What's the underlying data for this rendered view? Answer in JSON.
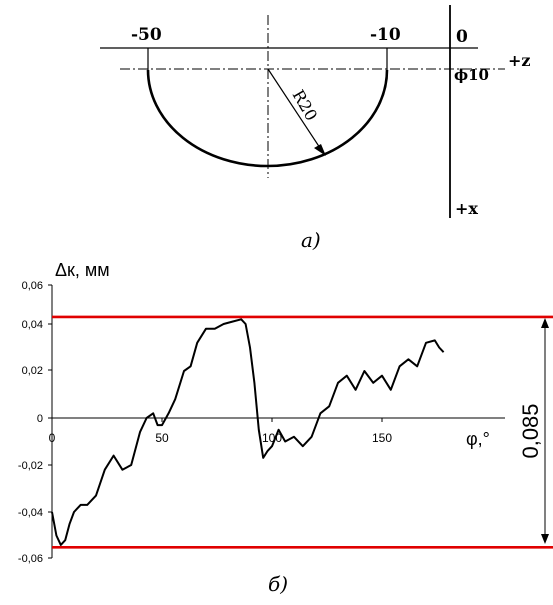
{
  "diagram_a": {
    "z_labels": [
      "-50",
      "-10",
      "0"
    ],
    "axis_z_label": "+z",
    "axis_x_label": "+x",
    "diameter_label": "ϕ10",
    "radius_label": "R20",
    "caption": "а)"
  },
  "chart_b": {
    "caption": "б)",
    "ylabel": "Δк, мм",
    "xlabel": "φ,°",
    "band_label": "0,085",
    "y_ticks": [
      "0,06",
      "0,04",
      "0,02",
      "0",
      "-0,02",
      "-0,04",
      "-0,06"
    ],
    "x_ticks": [
      "0",
      "50",
      "100",
      "150"
    ],
    "colors": {
      "line": "#000000",
      "limits": "#e00000"
    }
  },
  "chart_data": {
    "type": "line",
    "title": "",
    "xlabel": "φ,°",
    "ylabel": "Δк, мм",
    "xlim": [
      0,
      200
    ],
    "ylim": [
      -0.06,
      0.06
    ],
    "grid": false,
    "x_ticks": [
      0,
      50,
      100,
      150
    ],
    "y_ticks": [
      0.06,
      0.04,
      0.02,
      0,
      -0.02,
      -0.04,
      -0.06
    ],
    "limit_lines": [
      0.043,
      -0.055
    ],
    "band_value": "0,085",
    "series": [
      {
        "x": [
          0,
          2,
          4,
          6,
          8,
          10,
          13,
          16,
          20,
          24,
          28,
          32,
          36,
          40,
          43,
          46,
          48,
          50,
          53,
          56,
          60,
          63,
          66,
          70,
          74,
          78,
          82,
          86,
          88,
          90,
          92,
          94,
          96,
          98,
          100,
          103,
          106,
          110,
          114,
          118,
          122,
          126,
          130,
          134,
          138,
          142,
          146,
          150,
          154,
          158,
          162,
          166,
          170,
          174,
          176,
          178
        ],
        "y": [
          -0.04,
          -0.05,
          -0.054,
          -0.052,
          -0.045,
          -0.04,
          -0.037,
          -0.037,
          -0.033,
          -0.022,
          -0.016,
          -0.022,
          -0.02,
          -0.006,
          0,
          0.002,
          -0.003,
          -0.003,
          0.002,
          0.008,
          0.02,
          0.022,
          0.032,
          0.038,
          0.038,
          0.04,
          0.041,
          0.042,
          0.04,
          0.03,
          0.015,
          -0.005,
          -0.017,
          -0.014,
          -0.012,
          -0.005,
          -0.01,
          -0.008,
          -0.012,
          -0.008,
          0.002,
          0.005,
          0.015,
          0.018,
          0.012,
          0.02,
          0.015,
          0.018,
          0.012,
          0.022,
          0.025,
          0.022,
          0.032,
          0.033,
          0.03,
          0.028
        ]
      }
    ]
  }
}
